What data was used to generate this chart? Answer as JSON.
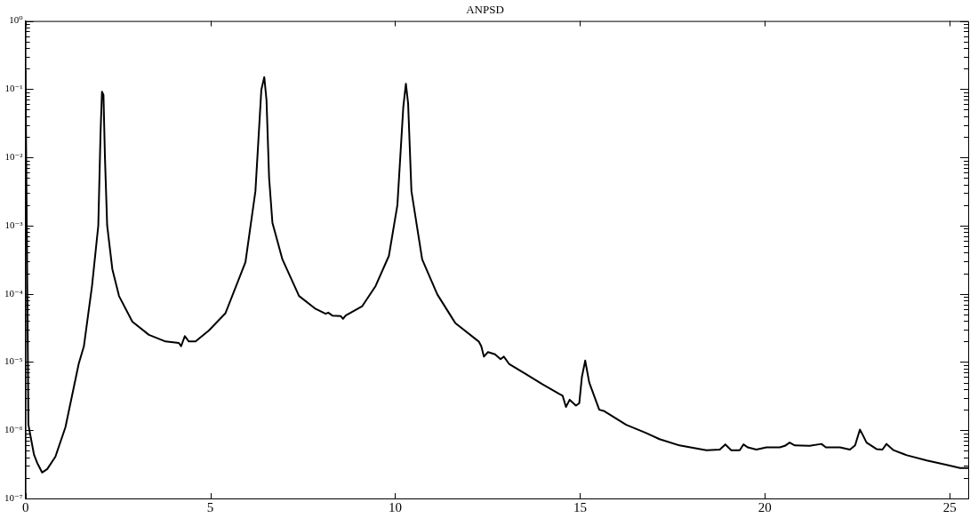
{
  "chart_data": {
    "type": "line",
    "title": "ANPSD",
    "log": "y",
    "xlim": [
      0,
      25.5
    ],
    "xticks": [
      0,
      5,
      10,
      15,
      20,
      25
    ],
    "ylim": [
      1e-07,
      1
    ],
    "yticks": [
      {
        "value": 1e-07,
        "label": "10⁻⁷"
      },
      {
        "value": 2e-07,
        "label": null
      },
      {
        "value": 3e-07,
        "label": null
      },
      {
        "value": 4e-07,
        "label": null
      },
      {
        "value": 5e-07,
        "label": null
      },
      {
        "value": 6e-07,
        "label": null
      },
      {
        "value": 7e-07,
        "label": null
      },
      {
        "value": 8e-07,
        "label": null
      },
      {
        "value": 9e-07,
        "label": null
      },
      {
        "value": 1e-06,
        "label": "10⁻⁶"
      },
      {
        "value": 2e-06,
        "label": null
      },
      {
        "value": 3e-06,
        "label": null
      },
      {
        "value": 4e-06,
        "label": null
      },
      {
        "value": 5e-06,
        "label": null
      },
      {
        "value": 6e-06,
        "label": null
      },
      {
        "value": 7e-06,
        "label": null
      },
      {
        "value": 8e-06,
        "label": null
      },
      {
        "value": 9e-06,
        "label": null
      },
      {
        "value": 1e-05,
        "label": "10⁻⁵"
      },
      {
        "value": 2e-05,
        "label": null
      },
      {
        "value": 3e-05,
        "label": null
      },
      {
        "value": 4e-05,
        "label": null
      },
      {
        "value": 5e-05,
        "label": null
      },
      {
        "value": 6e-05,
        "label": null
      },
      {
        "value": 7e-05,
        "label": null
      },
      {
        "value": 8e-05,
        "label": null
      },
      {
        "value": 9e-05,
        "label": null
      },
      {
        "value": 0.0001,
        "label": "10⁻⁴"
      },
      {
        "value": 0.0002,
        "label": null
      },
      {
        "value": 0.0003,
        "label": null
      },
      {
        "value": 0.0004,
        "label": null
      },
      {
        "value": 0.0005,
        "label": null
      },
      {
        "value": 0.0006,
        "label": null
      },
      {
        "value": 0.0007,
        "label": null
      },
      {
        "value": 0.0008,
        "label": null
      },
      {
        "value": 0.0009,
        "label": null
      },
      {
        "value": 0.001,
        "label": "10⁻³"
      },
      {
        "value": 0.002,
        "label": null
      },
      {
        "value": 0.003,
        "label": null
      },
      {
        "value": 0.004,
        "label": null
      },
      {
        "value": 0.005,
        "label": null
      },
      {
        "value": 0.006,
        "label": null
      },
      {
        "value": 0.007,
        "label": null
      },
      {
        "value": 0.008,
        "label": null
      },
      {
        "value": 0.009,
        "label": null
      },
      {
        "value": 0.01,
        "label": "10⁻²"
      },
      {
        "value": 0.02,
        "label": null
      },
      {
        "value": 0.03,
        "label": null
      },
      {
        "value": 0.04,
        "label": null
      },
      {
        "value": 0.05,
        "label": null
      },
      {
        "value": 0.06,
        "label": null
      },
      {
        "value": 0.07,
        "label": null
      },
      {
        "value": 0.08,
        "label": null
      },
      {
        "value": 0.09,
        "label": null
      },
      {
        "value": 0.1,
        "label": "10⁻¹"
      },
      {
        "value": 0.2,
        "label": null
      },
      {
        "value": 0.3,
        "label": null
      },
      {
        "value": 0.4,
        "label": null
      },
      {
        "value": 0.5,
        "label": null
      },
      {
        "value": 0.6,
        "label": null
      },
      {
        "value": 0.7,
        "label": null
      },
      {
        "value": 0.8,
        "label": null
      },
      {
        "value": 0.9,
        "label": null
      },
      {
        "value": 1,
        "label": "10⁰"
      }
    ],
    "grid": false,
    "legend": false,
    "series": [
      {
        "color": "#000000",
        "x": [
          0,
          0.08,
          0.23,
          0.32,
          0.45,
          0.59,
          0.81,
          1.08,
          1.44,
          1.58,
          1.8,
          1.97,
          2.03,
          2.07,
          2.11,
          2.15,
          2.21,
          2.35,
          2.53,
          2.89,
          3.34,
          3.79,
          4.15,
          4.21,
          4.31,
          4.42,
          4.6,
          4.96,
          5.41,
          5.95,
          6.22,
          6.38,
          6.46,
          6.52,
          6.59,
          6.68,
          6.95,
          7.4,
          7.85,
          8.12,
          8.19,
          8.3,
          8.53,
          8.59,
          8.66,
          9.11,
          9.47,
          9.83,
          10.06,
          10.22,
          10.29,
          10.35,
          10.44,
          10.73,
          11.14,
          11.63,
          12.26,
          12.33,
          12.4,
          12.51,
          12.7,
          12.85,
          12.94,
          13.08,
          13.53,
          13.99,
          14.44,
          14.53,
          14.62,
          14.72,
          14.89,
          14.98,
          15.05,
          15.14,
          15.25,
          15.52,
          15.66,
          16.25,
          16.79,
          17.15,
          17.69,
          18.42,
          18.78,
          18.93,
          19.09,
          19.32,
          19.42,
          19.54,
          19.77,
          20.04,
          20.4,
          20.54,
          20.67,
          20.81,
          21.21,
          21.53,
          21.65,
          22.03,
          22.3,
          22.44,
          22.57,
          22.64,
          22.75,
          23.02,
          23.18,
          23.29,
          23.48,
          23.84,
          24.38,
          24.92,
          25.28,
          25.5
        ],
        "values": [
          0.19,
          1.2e-06,
          4.4e-07,
          3.3e-07,
          2.4e-07,
          2.7e-07,
          4.1e-07,
          1.1e-06,
          9.4e-06,
          1.7e-05,
          0.00013,
          0.001,
          0.022,
          0.092,
          0.082,
          0.01,
          0.001,
          0.00023,
          9.3e-05,
          3.9e-05,
          2.5e-05,
          2e-05,
          1.9e-05,
          1.7e-05,
          2.4e-05,
          2e-05,
          2e-05,
          2.9e-05,
          5.2e-05,
          0.00029,
          0.0032,
          0.098,
          0.15,
          0.069,
          0.005,
          0.0011,
          0.00032,
          9.3e-05,
          6e-05,
          5.1e-05,
          5.3e-05,
          4.8e-05,
          4.7e-05,
          4.3e-05,
          4.8e-05,
          6.6e-05,
          0.00013,
          0.00036,
          0.002,
          0.055,
          0.12,
          0.062,
          0.0032,
          0.00032,
          9.8e-05,
          3.7e-05,
          2e-05,
          1.7e-05,
          1.2e-05,
          1.4e-05,
          1.3e-05,
          1.1e-05,
          1.2e-05,
          9.4e-06,
          6.7e-06,
          4.7e-06,
          3.4e-06,
          3.2e-06,
          2.2e-06,
          2.8e-06,
          2.3e-06,
          2.5e-06,
          6e-06,
          1.05e-05,
          5e-06,
          2e-06,
          1.9e-06,
          1.2e-06,
          9.1e-07,
          7.4e-07,
          6e-07,
          5.1e-07,
          5.2e-07,
          6.2e-07,
          5.1e-07,
          5.1e-07,
          6.2e-07,
          5.6e-07,
          5.2e-07,
          5.6e-07,
          5.6e-07,
          5.9e-07,
          6.6e-07,
          6e-07,
          5.9e-07,
          6.3e-07,
          5.6e-07,
          5.6e-07,
          5.2e-07,
          6e-07,
          1.02e-06,
          8.7e-07,
          6.6e-07,
          5.3e-07,
          5.2e-07,
          6.3e-07,
          5.1e-07,
          4.3e-07,
          3.6e-07,
          3.1e-07,
          2.8e-07,
          2.8e-07
        ]
      }
    ]
  }
}
